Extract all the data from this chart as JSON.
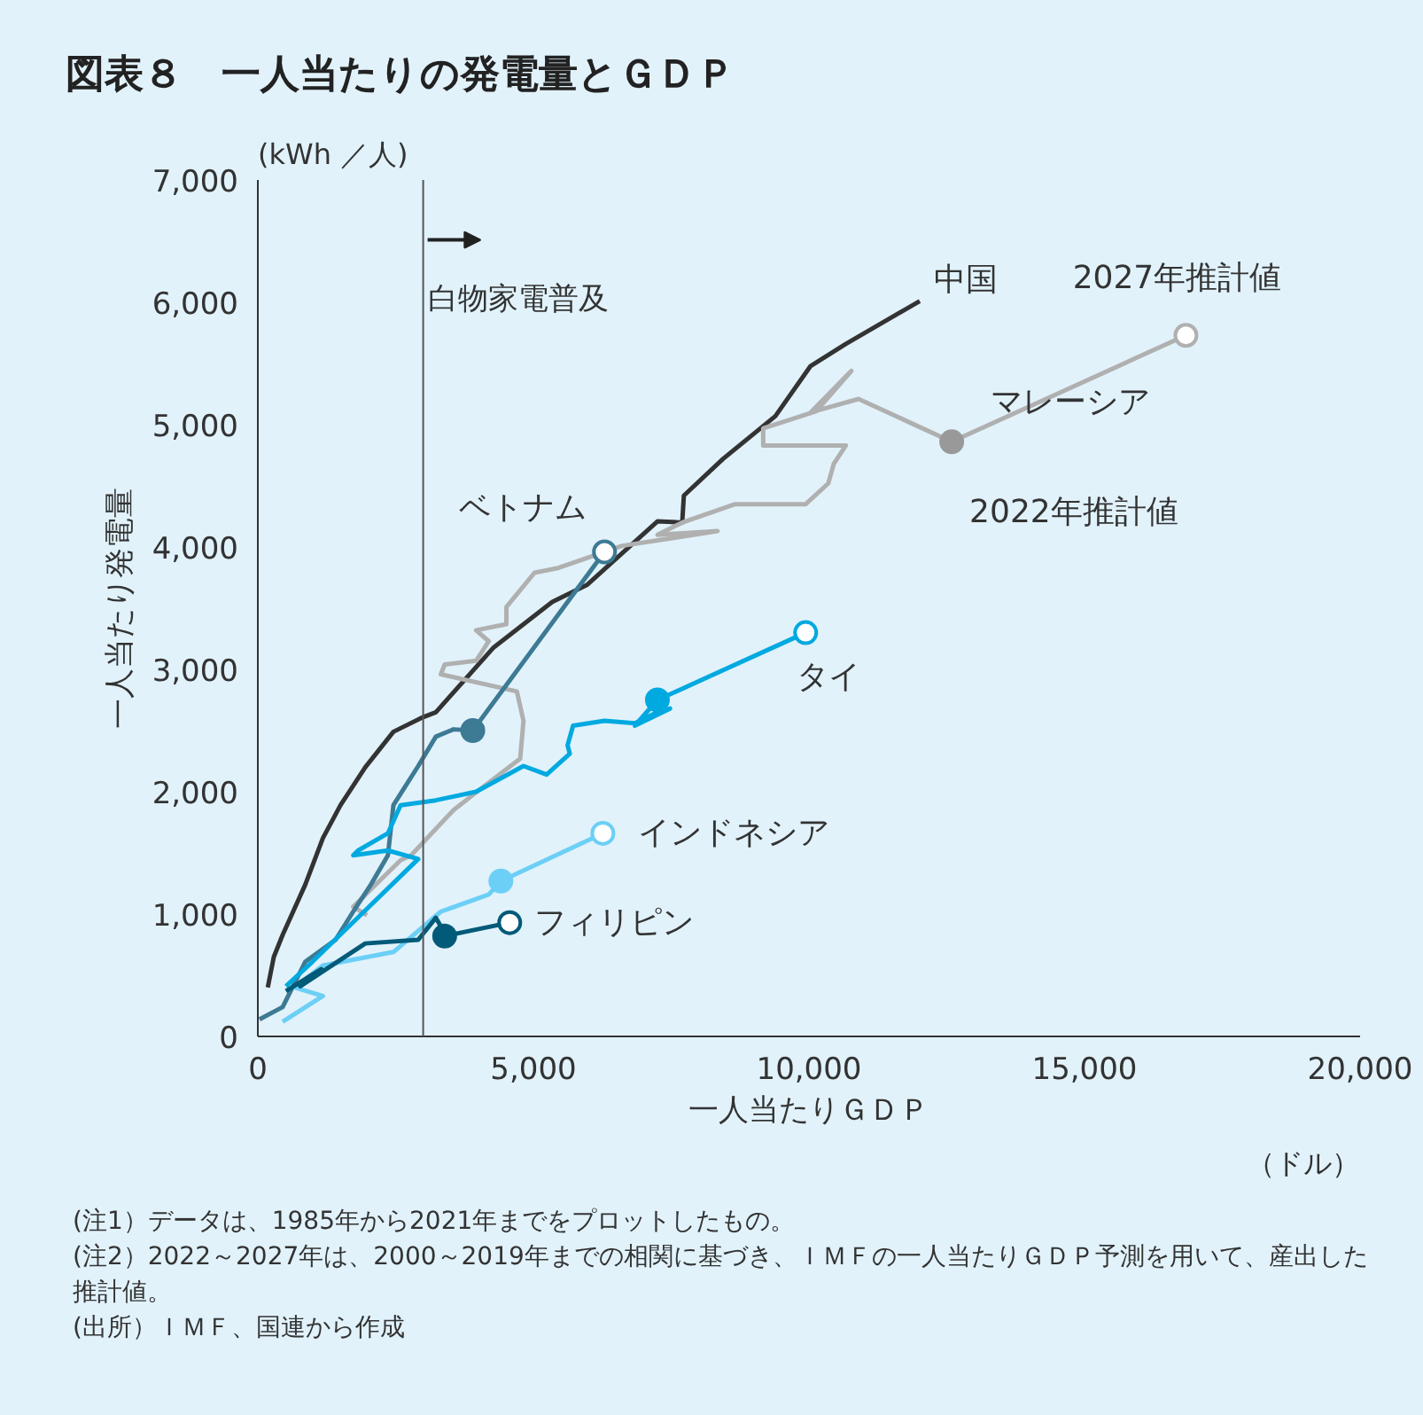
{
  "chart_data": {
    "type": "line",
    "title": "図表８　一人当たりの発電量とＧＤＰ",
    "xlabel": "一人当たりＧＤＰ",
    "ylabel": "一人当たり発電量",
    "xlim": [
      0,
      20000
    ],
    "ylim": [
      0,
      7000
    ],
    "xticks": [
      0,
      {
        "value": 5000,
        "label": "5,000"
      },
      {
        "value": 10000,
        "label": "10,000"
      },
      {
        "value": 15000,
        "label": "15,000"
      },
      {
        "value": 20000,
        "label": "20,000"
      }
    ],
    "yticks": [
      0,
      {
        "value": 1000,
        "label": "1,000"
      },
      {
        "value": 2000,
        "label": "2,000"
      },
      {
        "value": 3000,
        "label": "3,000"
      },
      {
        "value": 4000,
        "label": "4,000"
      },
      {
        "value": 5000,
        "label": "5,000"
      },
      {
        "value": 6000,
        "label": "6,000"
      },
      {
        "value": 7000,
        "label": "7,000"
      }
    ],
    "grid": false,
    "marker": "none",
    "line_style": "solid",
    "ref_lines": [
      {
        "axis": "x",
        "value": 3000,
        "label": "白物家電普及",
        "color": "#555555"
      }
    ],
    "series": [
      {
        "name": "中国",
        "color": "#333333",
        "x": [
          180,
          290,
          450,
          860,
          1180,
          1500,
          1950,
          2460,
          3000,
          3230,
          4280,
          5340,
          5970,
          7250,
          7700,
          7730,
          8440,
          9390,
          10030,
          10670,
          12010
        ],
        "values": [
          400,
          650,
          830,
          1240,
          1620,
          1890,
          2200,
          2490,
          2610,
          2650,
          3180,
          3550,
          3690,
          4210,
          4200,
          4420,
          4720,
          5070,
          5480,
          5660,
          6010
        ]
      },
      {
        "name": "マレーシア",
        "color": "#b0b0b0",
        "x": [
          1980,
          1730,
          2590,
          2780,
          3550,
          4060,
          4760,
          4820,
          4700,
          3320,
          3390,
          3960,
          4190,
          3960,
          4510,
          4510,
          5020,
          5460,
          6610,
          8340,
          7250,
          7700,
          8660,
          9940,
          10350,
          10450,
          10670,
          9170,
          9170,
          10130,
          10770,
          10030,
          10900,
          12590,
          16840
        ],
        "values": [
          990,
          1060,
          1440,
          1480,
          1850,
          2030,
          2270,
          2580,
          2820,
          2960,
          3040,
          3070,
          3230,
          3320,
          3370,
          3510,
          3790,
          3830,
          4010,
          4130,
          4100,
          4200,
          4350,
          4350,
          4520,
          4680,
          4830,
          4830,
          4970,
          5110,
          5440,
          5100,
          5210,
          4860,
          5730
        ]
      },
      {
        "name": "ベトナム",
        "color": "#3d7a94",
        "x": [
          30,
          450,
          860,
          1410,
          1730,
          2050,
          2360,
          2460,
          2910,
          3230,
          3550,
          3900,
          6290
        ],
        "values": [
          140,
          240,
          610,
          790,
          1020,
          1240,
          1480,
          1890,
          2210,
          2450,
          2510,
          2500,
          3960
        ]
      },
      {
        "name": "タイ",
        "color": "#00a9e0",
        "x": [
          510,
          990,
          2910,
          2360,
          1730,
          1820,
          2360,
          2590,
          3230,
          3960,
          4820,
          5240,
          5660,
          5620,
          5720,
          6290,
          6840,
          7250,
          7480,
          6840,
          7250,
          9940
        ],
        "values": [
          410,
          610,
          1450,
          1520,
          1480,
          1520,
          1660,
          1890,
          1930,
          2000,
          2210,
          2140,
          2310,
          2380,
          2540,
          2580,
          2560,
          2650,
          2680,
          2540,
          2750,
          3300
        ]
      },
      {
        "name": "インドネシア",
        "color": "#6ccff6",
        "x": [
          450,
          1180,
          670,
          1180,
          2460,
          3320,
          4190,
          4410,
          6260
        ],
        "values": [
          120,
          330,
          400,
          580,
          690,
          1020,
          1160,
          1270,
          1660
        ]
      },
      {
        "name": "フィリピン",
        "color": "#005a78",
        "x": [
          510,
          1150,
          770,
          1950,
          2910,
          3230,
          3320,
          3390,
          4570
        ],
        "values": [
          370,
          550,
          410,
          760,
          790,
          970,
          900,
          820,
          930
        ]
      },
      {
        "type": "scatter",
        "marker": "circle",
        "x": [
          12590,
          3900,
          7250,
          4410,
          3390
        ],
        "values": [
          4860,
          2500,
          2750,
          1270,
          820
        ],
        "colors": [
          "#999999",
          "#3d7a94",
          "#00a9e0",
          "#6ccff6",
          "#005a78"
        ]
      },
      {
        "type": "scatter",
        "marker": "circle",
        "x": [
          16840,
          6290,
          9940,
          6260,
          4570
        ],
        "values": [
          5730,
          3960,
          3300,
          1660,
          930
        ],
        "colors": [
          "#b0b0b0",
          "#3d7a94",
          "#00a9e0",
          "#6ccff6",
          "#005a78"
        ]
      }
    ],
    "annotations": [
      "(kWh ／人)",
      "（ドル）",
      {
        "text": "2027年推計値",
        "x": 16840,
        "y": 5730
      },
      {
        "text": "2022年推計値",
        "x": 12590,
        "y": 4860
      },
      "(注1）データは、1985年から2021年までをプロットしたもの。",
      "(注2）2022～2027年は、2000～2019年までの相関に基づき、ＩＭＦの一人当たりＧＤＰ予測を用いて、産出した推計値。",
      "(出所）ＩＭＦ、国連から作成"
    ]
  }
}
